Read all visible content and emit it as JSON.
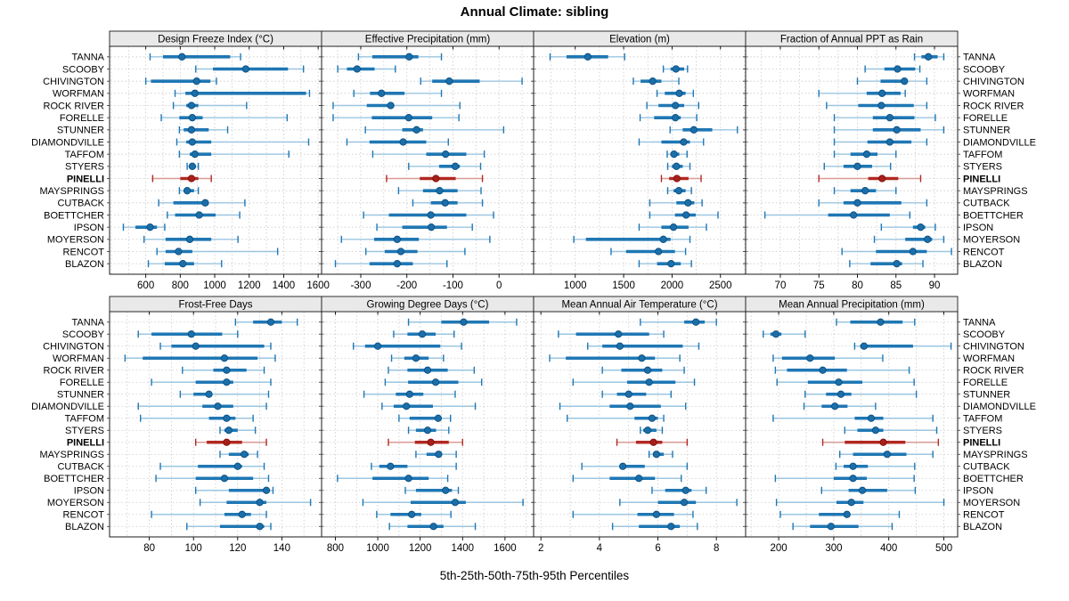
{
  "title": "Annual Climate: sibling",
  "xlabel": "5th-25th-50th-75th-95th Percentiles",
  "percentile_legend": [
    "5th",
    "25th",
    "50th",
    "75th",
    "95th"
  ],
  "stations": [
    "TANNA",
    "SCOOBY",
    "CHIVINGTON",
    "WORFMAN",
    "ROCK RIVER",
    "FORELLE",
    "STUNNER",
    "DIAMONDVILLE",
    "TAFFOM",
    "STYERS",
    "PINELLI",
    "MAYSPRINGS",
    "CUTBACK",
    "BOETTCHER",
    "IPSON",
    "MOYERSON",
    "RENCOT",
    "BLAZON"
  ],
  "highlight_station": "PINELLI",
  "colors": {
    "series_blue": "#1F77B4",
    "series_blue_light": "#9CC6E0",
    "series_blue_dot": "#1A6FAA",
    "series_blue_dot_edge": "#0D4D7F",
    "highlight_red": "#B22822",
    "highlight_red_light": "#D89B94",
    "highlight_red_dot": "#A81F1A",
    "highlight_red_dot_edge": "#791109",
    "grid": "#C8C8C8",
    "strip_bg": "#E9E9E9",
    "border": "#1A1A1A"
  },
  "chart_data": [
    {
      "type": "dotplot_percentiles",
      "title": "Design Freeze Index (°C)",
      "xlim": [
        390,
        1620
      ],
      "ticks": [
        600,
        800,
        1000,
        1200,
        1400,
        1600
      ],
      "minor_step": 100,
      "values": [
        [
          625,
          700,
          810,
          1090,
          1150
        ],
        [
          890,
          990,
          1180,
          1425,
          1515
        ],
        [
          600,
          630,
          895,
          975,
          1010
        ],
        [
          770,
          830,
          885,
          1530,
          1550
        ],
        [
          760,
          835,
          865,
          905,
          1185
        ],
        [
          690,
          795,
          870,
          930,
          1420
        ],
        [
          795,
          820,
          865,
          965,
          1075
        ],
        [
          780,
          835,
          870,
          980,
          1545
        ],
        [
          795,
          855,
          885,
          980,
          1430
        ],
        [
          840,
          855,
          870,
          890,
          905
        ],
        [
          640,
          800,
          865,
          905,
          980
        ],
        [
          795,
          820,
          840,
          880,
          905
        ],
        [
          675,
          760,
          945,
          965,
          1175
        ],
        [
          725,
          770,
          910,
          1005,
          1145
        ],
        [
          470,
          540,
          625,
          665,
          710
        ],
        [
          590,
          715,
          855,
          980,
          1135
        ],
        [
          665,
          715,
          790,
          870,
          1365
        ],
        [
          615,
          710,
          815,
          880,
          1040
        ]
      ]
    },
    {
      "type": "dotplot_percentiles",
      "title": "Effective Precipitation (mm)",
      "xlim": [
        -385,
        75
      ],
      "ticks": [
        -300,
        -200,
        -100,
        0
      ],
      "minor_step": 50,
      "values": [
        [
          -305,
          -275,
          -195,
          -175,
          -125
        ],
        [
          -350,
          -330,
          -308,
          -270,
          -225
        ],
        [
          -170,
          -145,
          -108,
          -42,
          50
        ],
        [
          -315,
          -280,
          -255,
          -205,
          -125
        ],
        [
          -360,
          -287,
          -235,
          -228,
          -85
        ],
        [
          -360,
          -276,
          -196,
          -145,
          -87
        ],
        [
          -290,
          -210,
          -179,
          -165,
          10
        ],
        [
          -330,
          -281,
          -208,
          -158,
          -110
        ],
        [
          -274,
          -158,
          -116,
          -71,
          -32
        ],
        [
          -196,
          -130,
          -95,
          -85,
          -40
        ],
        [
          -244,
          -172,
          -137,
          -94,
          -36
        ],
        [
          -218,
          -165,
          -129,
          -90,
          -39
        ],
        [
          -187,
          -148,
          -117,
          -90,
          -36
        ],
        [
          -294,
          -239,
          -148,
          -71,
          -12
        ],
        [
          -265,
          -210,
          -147,
          -113,
          -58
        ],
        [
          -342,
          -271,
          -221,
          -174,
          -20
        ],
        [
          -289,
          -248,
          -213,
          -177,
          -74
        ],
        [
          -355,
          -281,
          -221,
          -187,
          -113
        ]
      ]
    },
    {
      "type": "dotplot_percentiles",
      "title": "Elevation (m)",
      "xlim": [
        570,
        2760
      ],
      "ticks": [
        1000,
        1500,
        2000,
        2500
      ],
      "minor_step": 250,
      "values": [
        [
          740,
          910,
          1130,
          1340,
          1510
        ],
        [
          1910,
          1985,
          2040,
          2125,
          2160
        ],
        [
          1600,
          1675,
          1800,
          1890,
          2070
        ],
        [
          1845,
          1925,
          2075,
          2140,
          2220
        ],
        [
          1740,
          1860,
          2035,
          2125,
          2275
        ],
        [
          1670,
          1815,
          2035,
          2090,
          2255
        ],
        [
          1980,
          2110,
          2225,
          2415,
          2675
        ],
        [
          1660,
          1890,
          2120,
          2185,
          2325
        ],
        [
          1950,
          1985,
          2020,
          2075,
          2155
        ],
        [
          1955,
          2000,
          2045,
          2110,
          2185
        ],
        [
          1890,
          1970,
          2050,
          2170,
          2300
        ],
        [
          1955,
          2015,
          2070,
          2140,
          2200
        ],
        [
          1770,
          2045,
          2165,
          2230,
          2310
        ],
        [
          1770,
          2030,
          2145,
          2245,
          2475
        ],
        [
          1660,
          1890,
          2015,
          2170,
          2355
        ],
        [
          985,
          1110,
          1910,
          1985,
          2185
        ],
        [
          1370,
          1525,
          1860,
          2030,
          2140
        ],
        [
          1660,
          1845,
          1990,
          2090,
          2200
        ]
      ]
    },
    {
      "type": "dotplot_percentiles",
      "title": "Fraction of Annual PPT as Rain",
      "xlim": [
        65.5,
        93
      ],
      "ticks": [
        70,
        75,
        80,
        85,
        90
      ],
      "minor_step": 2.5,
      "values": [
        [
          87.4,
          88.3,
          89.2,
          90.4,
          91.2
        ],
        [
          81,
          83.5,
          85.2,
          87.5,
          88.1
        ],
        [
          80,
          83,
          86.1,
          86.5,
          89
        ],
        [
          75,
          81.2,
          83.2,
          85.6,
          86.2
        ],
        [
          76,
          80.1,
          83.1,
          87.3,
          89
        ],
        [
          77,
          82,
          84.2,
          87.4,
          90.1
        ],
        [
          77,
          82,
          85.1,
          88.2,
          91.2
        ],
        [
          77,
          81.3,
          84.2,
          87,
          89
        ],
        [
          77,
          79.1,
          81.2,
          82.6,
          85
        ],
        [
          75.7,
          78.2,
          80,
          81.9,
          84.3
        ],
        [
          75,
          81.4,
          83.2,
          85.3,
          88.2
        ],
        [
          77,
          79.1,
          81,
          82.4,
          85
        ],
        [
          75,
          78.2,
          80,
          85.7,
          89
        ],
        [
          68,
          76.2,
          79.5,
          84.2,
          86.8
        ],
        [
          83.1,
          87.2,
          88.2,
          88.8,
          90.1
        ],
        [
          82.2,
          86.2,
          89.1,
          89.7,
          91.2
        ],
        [
          78,
          82.4,
          87.2,
          89,
          92.2
        ],
        [
          79,
          81.7,
          85.1,
          85.8,
          88.5
        ]
      ]
    },
    {
      "type": "dotplot_percentiles",
      "title": "Frost-Free Days",
      "xlim": [
        62,
        158
      ],
      "ticks": [
        80,
        100,
        120,
        140
      ],
      "minor_step": 10,
      "values": [
        [
          119,
          127,
          135,
          140,
          147
        ],
        [
          75,
          81,
          99,
          113,
          120
        ],
        [
          85,
          90,
          101,
          132,
          135
        ],
        [
          69,
          77,
          114,
          129,
          137
        ],
        [
          95,
          109,
          115,
          124,
          132
        ],
        [
          81,
          101,
          115,
          118,
          135
        ],
        [
          94,
          100,
          107,
          108,
          134
        ],
        [
          75,
          104,
          111,
          118,
          133
        ],
        [
          76,
          107,
          115,
          119,
          127
        ],
        [
          112,
          114,
          116,
          120,
          128
        ],
        [
          101,
          106,
          115,
          122,
          133
        ],
        [
          112,
          116,
          123,
          125,
          129
        ],
        [
          85,
          102,
          120,
          122,
          132
        ],
        [
          83,
          101,
          114,
          127,
          134
        ],
        [
          101,
          116,
          133,
          134,
          136
        ],
        [
          103,
          115,
          130,
          133,
          153
        ],
        [
          81,
          114,
          122,
          126,
          133
        ],
        [
          97,
          112,
          130,
          132,
          135
        ]
      ]
    },
    {
      "type": "dotplot_percentiles",
      "title": "Growing Degree Days (°C)",
      "xlim": [
        735,
        1735
      ],
      "ticks": [
        800,
        1000,
        1200,
        1400,
        1600
      ],
      "minor_step": 100,
      "values": [
        [
          1145,
          1300,
          1405,
          1525,
          1655
        ],
        [
          1075,
          1140,
          1210,
          1273,
          1360
        ],
        [
          885,
          940,
          1000,
          1295,
          1395
        ],
        [
          1065,
          1125,
          1180,
          1240,
          1310
        ],
        [
          1050,
          1140,
          1235,
          1330,
          1455
        ],
        [
          1035,
          1143,
          1273,
          1380,
          1490
        ],
        [
          935,
          1085,
          1150,
          1215,
          1365
        ],
        [
          1020,
          1075,
          1135,
          1260,
          1460
        ],
        [
          1100,
          1150,
          1285,
          1300,
          1343
        ],
        [
          1145,
          1180,
          1235,
          1275,
          1335
        ],
        [
          1050,
          1175,
          1250,
          1335,
          1400
        ],
        [
          1180,
          1230,
          1287,
          1300,
          1370
        ],
        [
          970,
          1007,
          1060,
          1140,
          1370
        ],
        [
          810,
          975,
          1145,
          1240,
          1330
        ],
        [
          1130,
          1180,
          1320,
          1350,
          1380
        ],
        [
          930,
          1155,
          1365,
          1415,
          1685
        ],
        [
          995,
          1060,
          1160,
          1205,
          1345
        ],
        [
          1055,
          1140,
          1263,
          1310,
          1460
        ]
      ]
    },
    {
      "type": "dotplot_percentiles",
      "title": "Mean Annual Air Temperature (°C)",
      "xlim": [
        1.75,
        9.0
      ],
      "ticks": [
        2,
        4,
        6,
        8
      ],
      "minor_step": 1,
      "values": [
        [
          5.4,
          6.9,
          7.3,
          7.6,
          8.0
        ],
        [
          2.6,
          3.2,
          4.65,
          5.7,
          6.2
        ],
        [
          3.6,
          4.1,
          4.7,
          6.85,
          7.4
        ],
        [
          2.3,
          2.85,
          5.45,
          5.9,
          6.75
        ],
        [
          4.1,
          4.75,
          5.65,
          6.15,
          6.9
        ],
        [
          3.1,
          4.95,
          5.7,
          6.6,
          7.25
        ],
        [
          4.1,
          4.6,
          5.0,
          5.6,
          6.45
        ],
        [
          2.65,
          4.35,
          5.05,
          6.1,
          6.95
        ],
        [
          2.9,
          5.2,
          5.8,
          6.0,
          6.2
        ],
        [
          5.4,
          5.5,
          5.65,
          5.95,
          6.15
        ],
        [
          4.6,
          5.25,
          5.85,
          6.15,
          7.0
        ],
        [
          5.7,
          5.85,
          5.95,
          6.2,
          6.5
        ],
        [
          3.4,
          4.7,
          4.8,
          5.55,
          7.0
        ],
        [
          3.1,
          4.35,
          5.35,
          5.9,
          6.8
        ],
        [
          5.8,
          6.25,
          6.95,
          7.15,
          7.65
        ],
        [
          4.7,
          6.0,
          6.9,
          7.3,
          8.7
        ],
        [
          3.1,
          5.3,
          5.95,
          6.55,
          7.2
        ],
        [
          4.45,
          5.35,
          6.45,
          6.75,
          7.35
        ]
      ]
    },
    {
      "type": "dotplot_percentiles",
      "title": "Mean Annual Precipitation (mm)",
      "xlim": [
        140,
        525
      ],
      "ticks": [
        200,
        300,
        400,
        500
      ],
      "minor_step": 50,
      "values": [
        [
          305,
          330,
          385,
          425,
          447
        ],
        [
          172,
          185,
          195,
          205,
          248
        ],
        [
          338,
          348,
          355,
          444,
          513
        ],
        [
          190,
          206,
          257,
          302,
          389
        ],
        [
          194,
          215,
          280,
          324,
          437
        ],
        [
          197,
          253,
          309,
          352,
          446
        ],
        [
          248,
          286,
          313,
          332,
          450
        ],
        [
          246,
          278,
          302,
          325,
          376
        ],
        [
          190,
          338,
          368,
          390,
          480
        ],
        [
          320,
          343,
          376,
          390,
          487
        ],
        [
          280,
          320,
          390,
          430,
          490
        ],
        [
          311,
          335,
          397,
          432,
          480
        ],
        [
          304,
          318,
          335,
          362,
          447
        ],
        [
          194,
          300,
          335,
          360,
          446
        ],
        [
          278,
          327,
          352,
          397,
          448
        ],
        [
          196,
          305,
          332,
          354,
          500
        ],
        [
          203,
          273,
          324,
          330,
          419
        ],
        [
          226,
          257,
          295,
          345,
          406
        ]
      ]
    }
  ]
}
